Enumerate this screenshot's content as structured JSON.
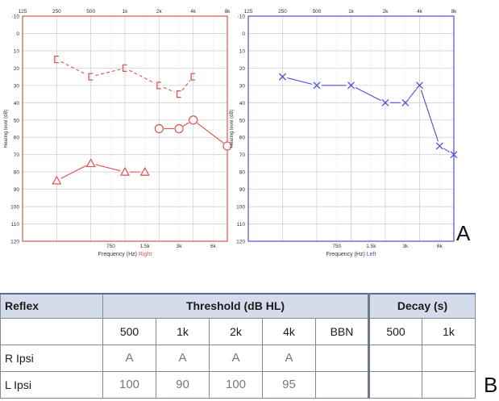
{
  "audiograms": {
    "top_ticks": [
      "125",
      "250",
      "500",
      "1k",
      "2k",
      "4k",
      "8k"
    ],
    "bottom_ticks": [
      "750",
      "1.5k",
      "3k",
      "6k"
    ],
    "y_ticks": [
      "-10",
      "0",
      "10",
      "20",
      "30",
      "40",
      "50",
      "60",
      "70",
      "80",
      "90",
      "100",
      "110",
      "120"
    ],
    "ylabel": "Hearing level (dB)",
    "xlabel_prefix": "Frequency (Hz)",
    "ylim": [
      -10,
      120
    ],
    "panels": [
      {
        "ear": "Right",
        "color": "#d9534f",
        "series": [
          {
            "marker": "bracket",
            "dashed": true,
            "points": [
              [
                250,
                15
              ],
              [
                500,
                25
              ],
              [
                1000,
                20
              ],
              [
                2000,
                30
              ],
              [
                3000,
                35
              ],
              [
                4000,
                25
              ]
            ]
          },
          {
            "marker": "circle",
            "dashed": false,
            "points": [
              [
                2000,
                55
              ],
              [
                3000,
                55
              ],
              [
                4000,
                50
              ],
              [
                8000,
                65
              ]
            ]
          },
          {
            "marker": "triangle",
            "dashed": false,
            "points": [
              [
                250,
                85
              ],
              [
                500,
                75
              ],
              [
                1000,
                80
              ],
              [
                1500,
                80
              ]
            ]
          }
        ]
      },
      {
        "ear": "Left",
        "color": "#4a4fd4",
        "series": [
          {
            "marker": "x",
            "dashed": false,
            "points": [
              [
                250,
                25
              ],
              [
                500,
                30
              ],
              [
                1000,
                30
              ],
              [
                2000,
                40
              ],
              [
                3000,
                40
              ],
              [
                4000,
                30
              ],
              [
                6000,
                65
              ],
              [
                8000,
                70
              ]
            ]
          }
        ]
      }
    ]
  },
  "chart_data": {
    "type": "table",
    "title": "",
    "headers": {
      "reflex": "Reflex",
      "threshold": "Threshold (dB HL)",
      "decay": "Decay (s)"
    },
    "columns": [
      "500",
      "1k",
      "2k",
      "4k",
      "BBN",
      "500",
      "1k"
    ],
    "rows": [
      {
        "label": "R Ipsi",
        "values": [
          "A",
          "A",
          "A",
          "A",
          "",
          "",
          ""
        ]
      },
      {
        "label": "L Ipsi",
        "values": [
          "100",
          "90",
          "100",
          "95",
          "",
          "",
          ""
        ]
      }
    ]
  },
  "panel_labels": {
    "a": "A",
    "b": "B"
  }
}
